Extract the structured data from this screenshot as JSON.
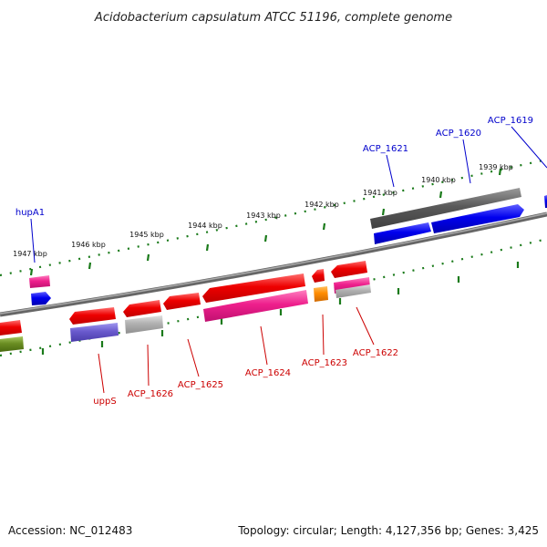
{
  "title": "Acidobacterium capsulatum ATCC 51196, complete genome",
  "footer": {
    "accession": "Accession: NC_012483",
    "summary": "Topology: circular; Length: 4,127,356 bp; Genes: 3,425"
  },
  "scale_ticks": [
    {
      "name": "tick-1939",
      "label": "1939 kbp"
    },
    {
      "name": "tick-1940",
      "label": "1940 kbp"
    },
    {
      "name": "tick-1941",
      "label": "1941 kbp"
    },
    {
      "name": "tick-1942",
      "label": "1942 kbp"
    },
    {
      "name": "tick-1943",
      "label": "1943 kbp"
    },
    {
      "name": "tick-1944",
      "label": "1944 kbp"
    },
    {
      "name": "tick-1945",
      "label": "1945 kbp"
    },
    {
      "name": "tick-1946",
      "label": "1946 kbp"
    },
    {
      "name": "tick-1947",
      "label": "1947 kbp"
    }
  ],
  "gene_labels": [
    {
      "name": "gene-label-acp1619",
      "text": "ACP_1619",
      "color": "#0000cc"
    },
    {
      "name": "gene-label-acp1620",
      "text": "ACP_1620",
      "color": "#0000cc"
    },
    {
      "name": "gene-label-acp1621",
      "text": "ACP_1621",
      "color": "#0000cc"
    },
    {
      "name": "gene-label-hupa1",
      "text": "hupA1",
      "color": "#0000cc"
    },
    {
      "name": "gene-label-upps",
      "text": "uppS",
      "color": "#cc0000"
    },
    {
      "name": "gene-label-acp1626",
      "text": "ACP_1626",
      "color": "#cc0000"
    },
    {
      "name": "gene-label-acp1625",
      "text": "ACP_1625",
      "color": "#cc0000"
    },
    {
      "name": "gene-label-acp1624",
      "text": "ACP_1624",
      "color": "#cc0000"
    },
    {
      "name": "gene-label-acp1623",
      "text": "ACP_1623",
      "color": "#cc0000"
    },
    {
      "name": "gene-label-acp1622",
      "text": "ACP_1622",
      "color": "#cc0000"
    }
  ],
  "colors": {
    "backbone": "#808080",
    "scale_ticks": "#1a7a1a",
    "gene_red": "#ee0000",
    "gene_blue": "#0000ee",
    "gene_gray": "#666666",
    "gene_pink": "#ee1f8c",
    "gene_purple": "#6a5acd",
    "gene_olive": "#6b8e23",
    "gene_orange": "#ff8c00",
    "gene_lightgray": "#b0b0b0"
  }
}
